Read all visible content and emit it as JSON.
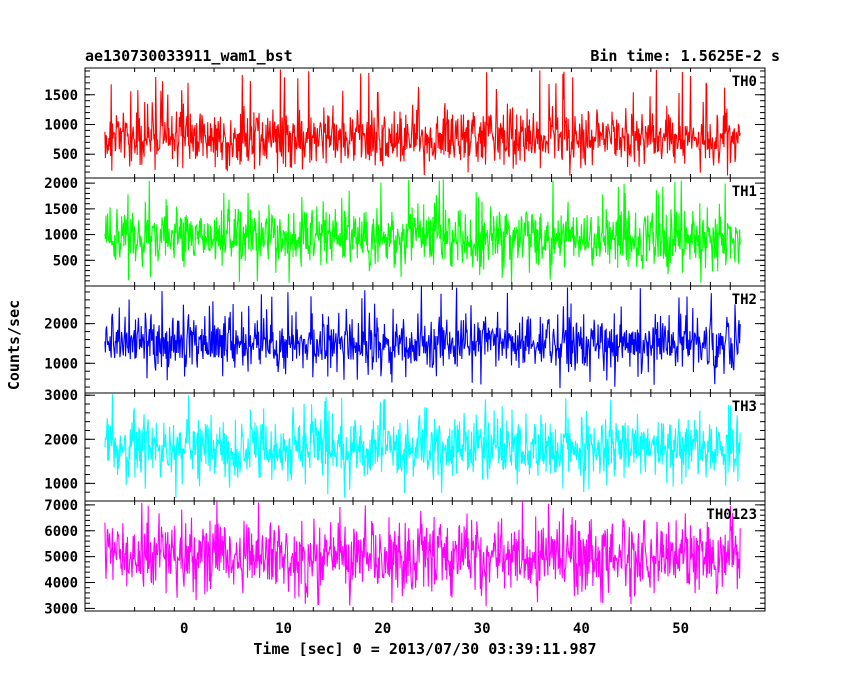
{
  "title_left": "ae130730033911_wam1_bst",
  "title_right": "Bin time: 1.5625E-2 s",
  "ylabel": "Counts/sec",
  "xlabel": "Time [sec] 0 = 2013/07/30 03:39:11.987",
  "chart_data": {
    "type": "line",
    "x_range": [
      -8,
      56
    ],
    "xlim": [
      -10,
      58.5
    ],
    "x_ticks": [
      0,
      10,
      20,
      30,
      40,
      50
    ],
    "xlabel": "Time [sec] 0 = 2013/07/30 03:39:11.987",
    "ylabel": "Counts/sec",
    "title": "ae130730033911_wam1_bst",
    "subtitle": "Bin time: 1.5625E-2 s",
    "panels": [
      {
        "name": "TH0",
        "color": "#ff0000",
        "ylim": [
          100,
          1950
        ],
        "yticks": [
          500,
          1000,
          1500
        ],
        "mean": 800,
        "spread": 300,
        "spike_max": 1950
      },
      {
        "name": "TH1",
        "color": "#00ff00",
        "ylim": [
          0,
          2100
        ],
        "yticks": [
          500,
          1000,
          1500,
          2000
        ],
        "mean": 950,
        "spread": 340,
        "spike_max": 2080
      },
      {
        "name": "TH2",
        "color": "#0000ff",
        "ylim": [
          250,
          2950
        ],
        "yticks": [
          1000,
          2000
        ],
        "mean": 1500,
        "spread": 420,
        "spike_max": 2950
      },
      {
        "name": "TH3",
        "color": "#00ffff",
        "ylim": [
          600,
          3050
        ],
        "yticks": [
          1000,
          2000,
          3000
        ],
        "mean": 1800,
        "spread": 420,
        "spike_max": 3050
      },
      {
        "name": "TH0123",
        "color": "#ff00ff",
        "ylim": [
          2900,
          7150
        ],
        "yticks": [
          3000,
          4000,
          5000,
          6000,
          7000
        ],
        "mean": 5000,
        "spread": 800,
        "spike_max": 7150
      }
    ]
  }
}
